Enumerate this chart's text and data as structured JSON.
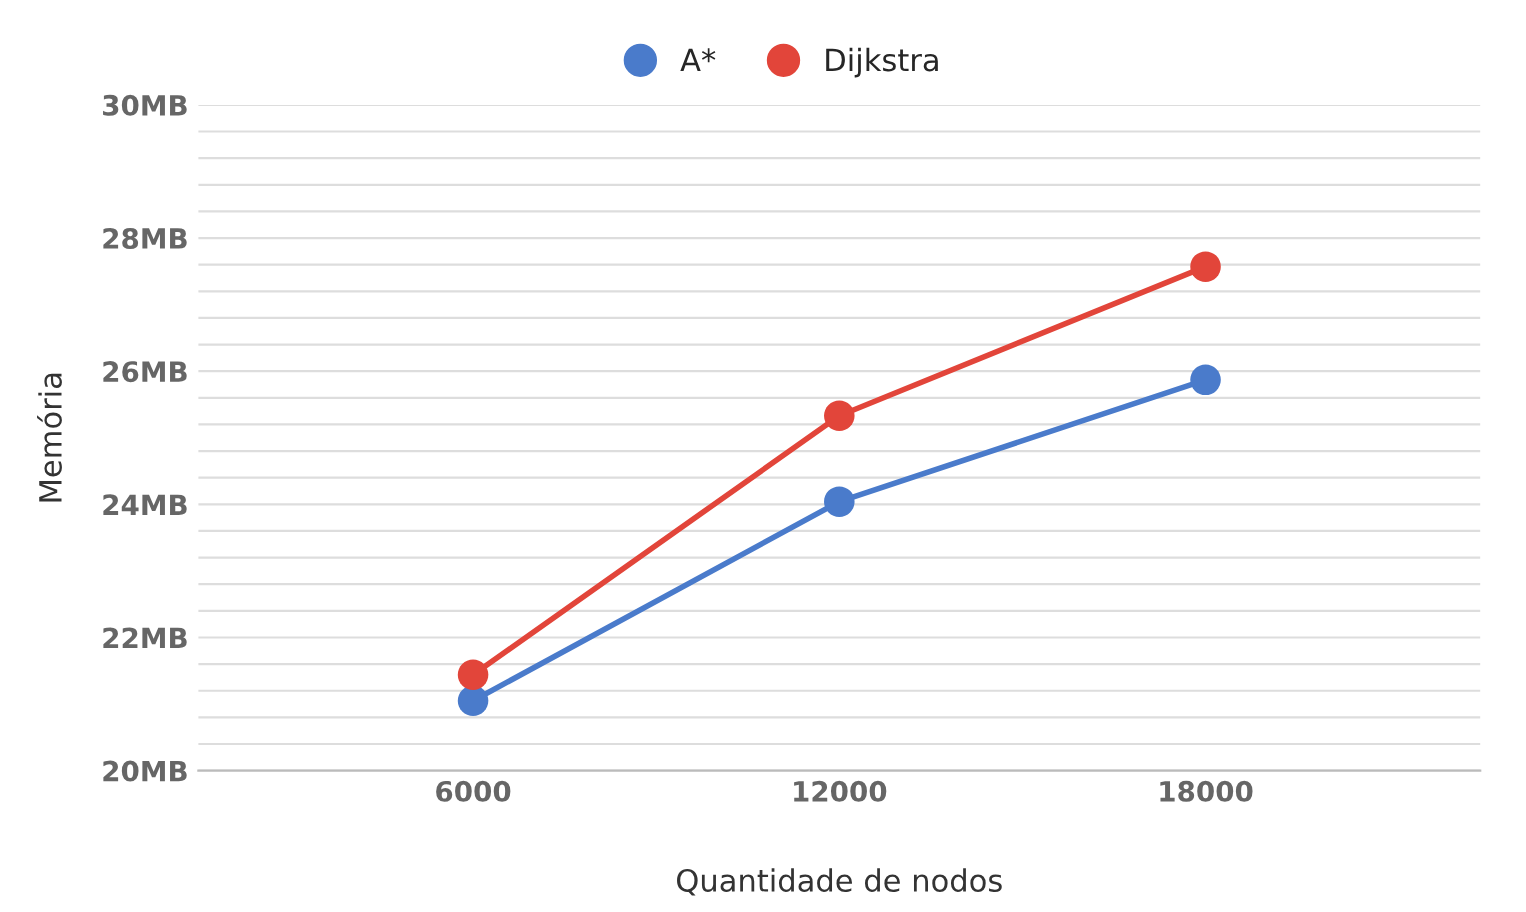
{
  "chart_data": {
    "type": "line",
    "xlabel": "Quantidade de nodos",
    "ylabel": "Memória",
    "categories": [
      "6000",
      "12000",
      "18000"
    ],
    "series": [
      {
        "name": "A*",
        "color": "#4a7bcb",
        "values": [
          21.05,
          24.04,
          25.87
        ]
      },
      {
        "name": "Dijkstra",
        "color": "#e2453a",
        "values": [
          21.44,
          25.33,
          27.57
        ]
      }
    ],
    "ylim": [
      20,
      30
    ],
    "yticks": [
      {
        "value": 20,
        "label": "20MB"
      },
      {
        "value": 20.4,
        "label": null
      },
      {
        "value": 20.8,
        "label": null
      },
      {
        "value": 21.2,
        "label": null
      },
      {
        "value": 21.6,
        "label": null
      },
      {
        "value": 22,
        "label": "22MB"
      },
      {
        "value": 22.4,
        "label": null
      },
      {
        "value": 22.8,
        "label": null
      },
      {
        "value": 23.2,
        "label": null
      },
      {
        "value": 23.6,
        "label": null
      },
      {
        "value": 24,
        "label": "24MB"
      },
      {
        "value": 24.4,
        "label": null
      },
      {
        "value": 24.8,
        "label": null
      },
      {
        "value": 25.2,
        "label": null
      },
      {
        "value": 25.6,
        "label": null
      },
      {
        "value": 26,
        "label": "26MB"
      },
      {
        "value": 26.4,
        "label": null
      },
      {
        "value": 26.8,
        "label": null
      },
      {
        "value": 27.2,
        "label": null
      },
      {
        "value": 27.6,
        "label": null
      },
      {
        "value": 28,
        "label": "28MB"
      },
      {
        "value": 28.4,
        "label": null
      },
      {
        "value": 28.8,
        "label": null
      },
      {
        "value": 29.2,
        "label": null
      },
      {
        "value": 29.6,
        "label": null
      },
      {
        "value": 30,
        "label": "30MB"
      }
    ],
    "grid": "y",
    "legend": "top",
    "marker": "circle",
    "line_style": "solid"
  }
}
